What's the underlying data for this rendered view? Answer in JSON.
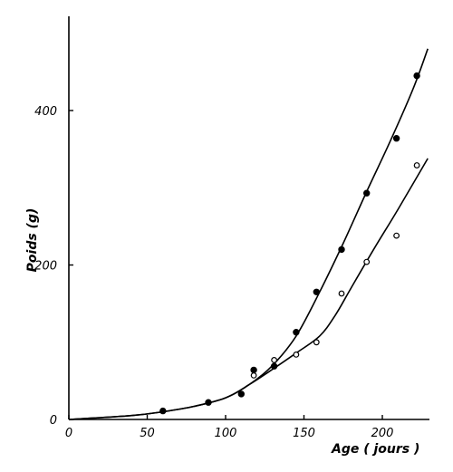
{
  "chart_data": {
    "type": "scatter",
    "title": "",
    "xlabel": "Age ( jours )",
    "ylabel": "Poids (g)",
    "xlim": [
      0,
      230
    ],
    "ylim": [
      0,
      520
    ],
    "x_ticks": [
      {
        "value": 0,
        "label": "0"
      },
      {
        "value": 50,
        "label": "50"
      },
      {
        "value": 100,
        "label": "100"
      },
      {
        "value": 150,
        "label": "150"
      },
      {
        "value": 200,
        "label": "200"
      }
    ],
    "y_ticks": [
      {
        "value": 0,
        "label": "0"
      },
      {
        "value": 200,
        "label": "200"
      },
      {
        "value": 400,
        "label": "400"
      }
    ],
    "grid": false,
    "legend": "none",
    "series": [
      {
        "marker": "filled-circle",
        "points": [
          {
            "x": 60,
            "y": 11
          },
          {
            "x": 89,
            "y": 22
          },
          {
            "x": 110,
            "y": 33
          },
          {
            "x": 118,
            "y": 64
          },
          {
            "x": 131,
            "y": 69
          },
          {
            "x": 145,
            "y": 113
          },
          {
            "x": 158,
            "y": 165
          },
          {
            "x": 174,
            "y": 220
          },
          {
            "x": 190,
            "y": 293
          },
          {
            "x": 209,
            "y": 364
          },
          {
            "x": 222,
            "y": 445
          }
        ],
        "curve": [
          {
            "x": 0,
            "y": 0
          },
          {
            "x": 40,
            "y": 5
          },
          {
            "x": 60,
            "y": 10
          },
          {
            "x": 80,
            "y": 17
          },
          {
            "x": 100,
            "y": 28
          },
          {
            "x": 115,
            "y": 45
          },
          {
            "x": 130,
            "y": 70
          },
          {
            "x": 145,
            "y": 108
          },
          {
            "x": 160,
            "y": 165
          },
          {
            "x": 175,
            "y": 228
          },
          {
            "x": 190,
            "y": 295
          },
          {
            "x": 205,
            "y": 360
          },
          {
            "x": 220,
            "y": 430
          },
          {
            "x": 229,
            "y": 480
          }
        ]
      },
      {
        "marker": "open-circle",
        "points": [
          {
            "x": 118,
            "y": 57
          },
          {
            "x": 131,
            "y": 77
          },
          {
            "x": 145,
            "y": 84
          },
          {
            "x": 158,
            "y": 100
          },
          {
            "x": 174,
            "y": 163
          },
          {
            "x": 190,
            "y": 204
          },
          {
            "x": 209,
            "y": 238
          },
          {
            "x": 222,
            "y": 329
          }
        ],
        "curve": [
          {
            "x": 0,
            "y": 0
          },
          {
            "x": 40,
            "y": 5
          },
          {
            "x": 60,
            "y": 10
          },
          {
            "x": 80,
            "y": 17
          },
          {
            "x": 100,
            "y": 28
          },
          {
            "x": 115,
            "y": 45
          },
          {
            "x": 130,
            "y": 65
          },
          {
            "x": 145,
            "y": 86
          },
          {
            "x": 160,
            "y": 108
          },
          {
            "x": 170,
            "y": 135
          },
          {
            "x": 180,
            "y": 170
          },
          {
            "x": 195,
            "y": 222
          },
          {
            "x": 210,
            "y": 272
          },
          {
            "x": 229,
            "y": 338
          }
        ]
      }
    ]
  }
}
